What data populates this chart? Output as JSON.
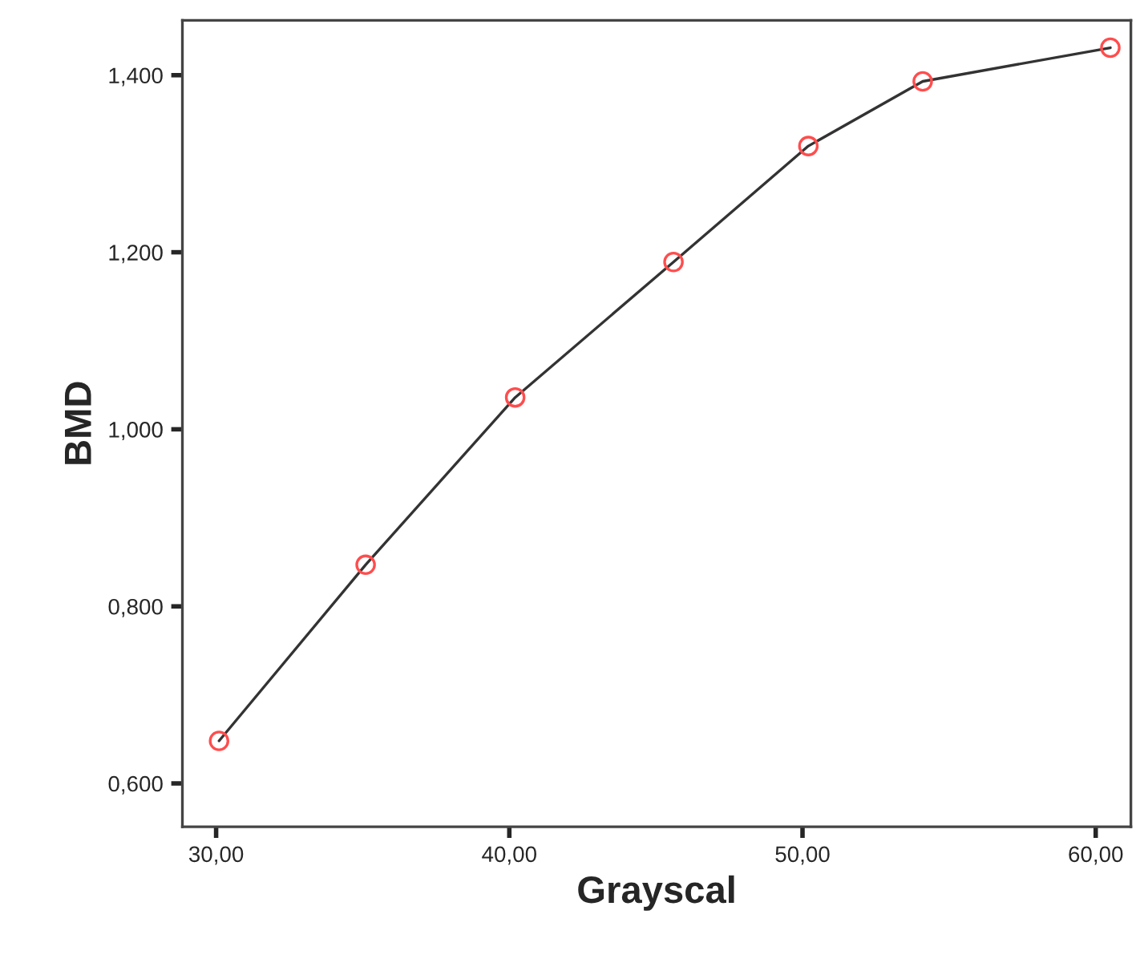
{
  "chart_data": {
    "type": "line",
    "xlabel": "Grayscal",
    "ylabel": "BMD",
    "x": [
      30.1,
      35.1,
      40.2,
      45.6,
      50.2,
      54.1,
      60.5
    ],
    "series": [
      {
        "color": "#ff4d4d",
        "values": [
          0.648,
          0.847,
          1.036,
          1.189,
          1.32,
          1.393,
          1.431
        ]
      }
    ],
    "xlim": [
      28.85,
      61.2
    ],
    "ylim": [
      0.551,
      1.462
    ],
    "xticks": [
      {
        "value": 30,
        "label": "30,00"
      },
      {
        "value": 40,
        "label": "40,00"
      },
      {
        "value": 50,
        "label": "50,00"
      },
      {
        "value": 60,
        "label": "60,00"
      }
    ],
    "yticks": [
      {
        "value": 0.6,
        "label": "0,600"
      },
      {
        "value": 0.8,
        "label": "0,800"
      },
      {
        "value": 1.0,
        "label": "1,000"
      },
      {
        "value": 1.2,
        "label": "1,200"
      },
      {
        "value": 1.4,
        "label": "1,400"
      }
    ],
    "marker": "circle",
    "line_style": "solid",
    "grid": false,
    "legend": false
  }
}
